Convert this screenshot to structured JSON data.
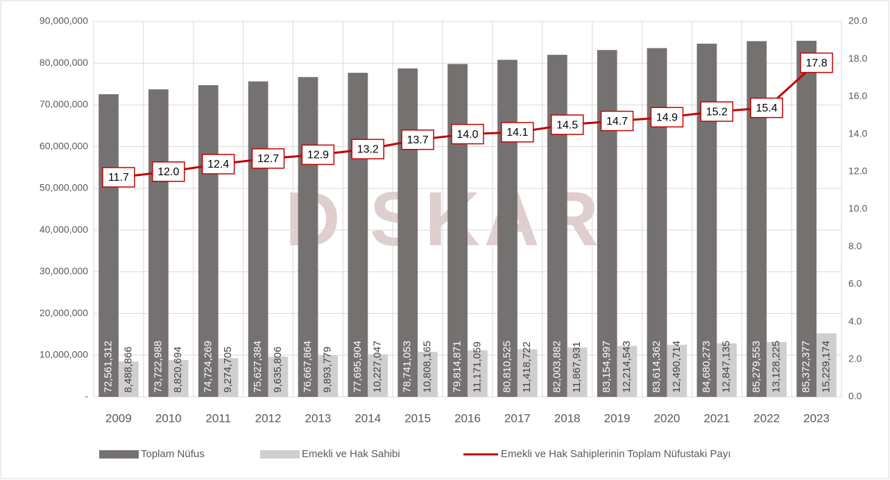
{
  "chart_data": {
    "type": "bar",
    "watermark": "DiSKAR",
    "categories": [
      "2009",
      "2010",
      "2011",
      "2012",
      "2013",
      "2014",
      "2015",
      "2016",
      "2017",
      "2018",
      "2019",
      "2020",
      "2021",
      "2022",
      "2023"
    ],
    "series": [
      {
        "name": "Toplam Nüfus",
        "color": "#767171",
        "values": [
          72561312,
          73722988,
          74724269,
          75627384,
          76667864,
          77695904,
          78741053,
          79814871,
          80810525,
          82003882,
          83154997,
          83614362,
          84680273,
          85279553,
          85372377
        ],
        "value_labels": [
          "72,561,312",
          "73,722,988",
          "74,724,269",
          "75,627,384",
          "76,667,864",
          "77,695,904",
          "78,741,053",
          "79,814,871",
          "80,810,525",
          "82,003,882",
          "83,154,997",
          "83,614,362",
          "84,680,273",
          "85,279,553",
          "85,372,377"
        ]
      },
      {
        "name": "Emekli ve Hak Sahibi",
        "color": "#d0cece",
        "values": [
          8488866,
          8820694,
          9274705,
          9635806,
          9893779,
          10227047,
          10808165,
          11171059,
          11418722,
          11867931,
          12214543,
          12490714,
          12847135,
          13128225,
          15229174
        ],
        "value_labels": [
          "8,488,866",
          "8,820,694",
          "9,274,705",
          "9,635,806",
          "9,893,779",
          "10,227,047",
          "10,808,165",
          "11,171,059",
          "11,418,722",
          "11,867,931",
          "12,214,543",
          "12,490,714",
          "12,847,135",
          "13,128,225",
          "15,229,174"
        ]
      },
      {
        "name": "Emekli ve Hak Sahiplerinin Toplam Nüfustaki Payı",
        "type": "line",
        "axis": "y2",
        "color": "#c00000",
        "values": [
          11.7,
          12,
          12.4,
          12.7,
          12.9,
          13.2,
          13.7,
          14,
          14.1,
          14.5,
          14.7,
          14.9,
          15.2,
          15.4,
          17.8
        ],
        "value_labels": [
          "11.7",
          "12.0",
          "12.4",
          "12.7",
          "12.9",
          "13.2",
          "13.7",
          "14.0",
          "14.1",
          "14.5",
          "14.7",
          "14.9",
          "15.2",
          "15.4",
          "17.8"
        ]
      }
    ],
    "ylim": [
      0,
      90000000
    ],
    "yticks": [
      {
        "value": 0,
        "label": "-"
      },
      {
        "value": 10000000,
        "label": "10,000,000"
      },
      {
        "value": 20000000,
        "label": "20,000,000"
      },
      {
        "value": 30000000,
        "label": "30,000,000"
      },
      {
        "value": 40000000,
        "label": "40,000,000"
      },
      {
        "value": 50000000,
        "label": "50,000,000"
      },
      {
        "value": 60000000,
        "label": "60,000,000"
      },
      {
        "value": 70000000,
        "label": "70,000,000"
      },
      {
        "value": 80000000,
        "label": "80,000,000"
      },
      {
        "value": 90000000,
        "label": "90,000,000"
      }
    ],
    "y2lim": [
      0,
      20
    ],
    "y2ticks": [
      {
        "value": 0,
        "label": "0.0"
      },
      {
        "value": 2,
        "label": "2.0"
      },
      {
        "value": 4,
        "label": "4.0"
      },
      {
        "value": 6,
        "label": "6.0"
      },
      {
        "value": 8,
        "label": "8.0"
      },
      {
        "value": 10,
        "label": "10.0"
      },
      {
        "value": 12,
        "label": "12.0"
      },
      {
        "value": 14,
        "label": "14.0"
      },
      {
        "value": 16,
        "label": "16.0"
      },
      {
        "value": 18,
        "label": "18.0"
      },
      {
        "value": 20,
        "label": "20.0"
      }
    ],
    "grid": true,
    "legend": "bottom"
  }
}
